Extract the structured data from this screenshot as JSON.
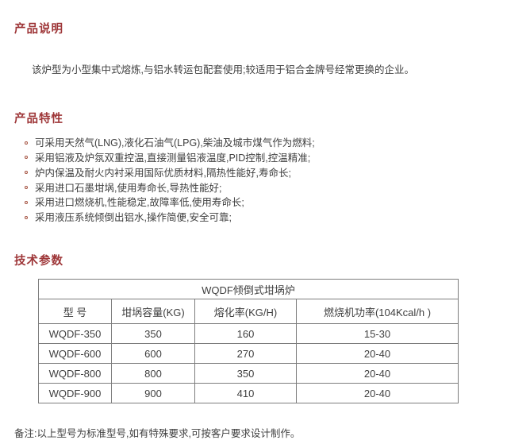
{
  "accent_color": "#9e3638",
  "description": {
    "title": "产品说明",
    "paragraph": "该炉型为小型集中式熔炼,与铝水转运包配套使用;较适用于铝合金牌号经常更换的企业。"
  },
  "features": {
    "title": "产品特性",
    "items": [
      "可采用天然气(LNG),液化石油气(LPG),柴油及城市煤气作为燃料;",
      "采用铝液及炉氛双重控温,直接测量铝液温度,PID控制,控温精准;",
      "炉内保温及耐火内衬采用国际优质材料,隔热性能好,寿命长;",
      "采用进口石墨坩埚,使用寿命长,导热性能好;",
      "采用进口燃烧机,性能稳定,故障率低,使用寿命长;",
      "采用液压系统倾倒出铝水,操作简便,安全可靠;"
    ]
  },
  "tech": {
    "title": "技术参数",
    "table": {
      "caption": "WQDF倾倒式坩埚炉",
      "columns": [
        "型  号",
        "坩埚容量(KG)",
        "熔化率(KG/H)",
        "燃烧机功率(104Kcal/h )"
      ],
      "rows": [
        [
          "WQDF-350",
          "350",
          "160",
          "15-30"
        ],
        [
          "WQDF-600",
          "600",
          "270",
          "20-40"
        ],
        [
          "WQDF-800",
          "800",
          "350",
          "20-40"
        ],
        [
          "WQDF-900",
          "900",
          "410",
          "20-40"
        ]
      ]
    },
    "note": "备注:以上型号为标准型号,如有特殊要求,可按客户要求设计制作。"
  }
}
